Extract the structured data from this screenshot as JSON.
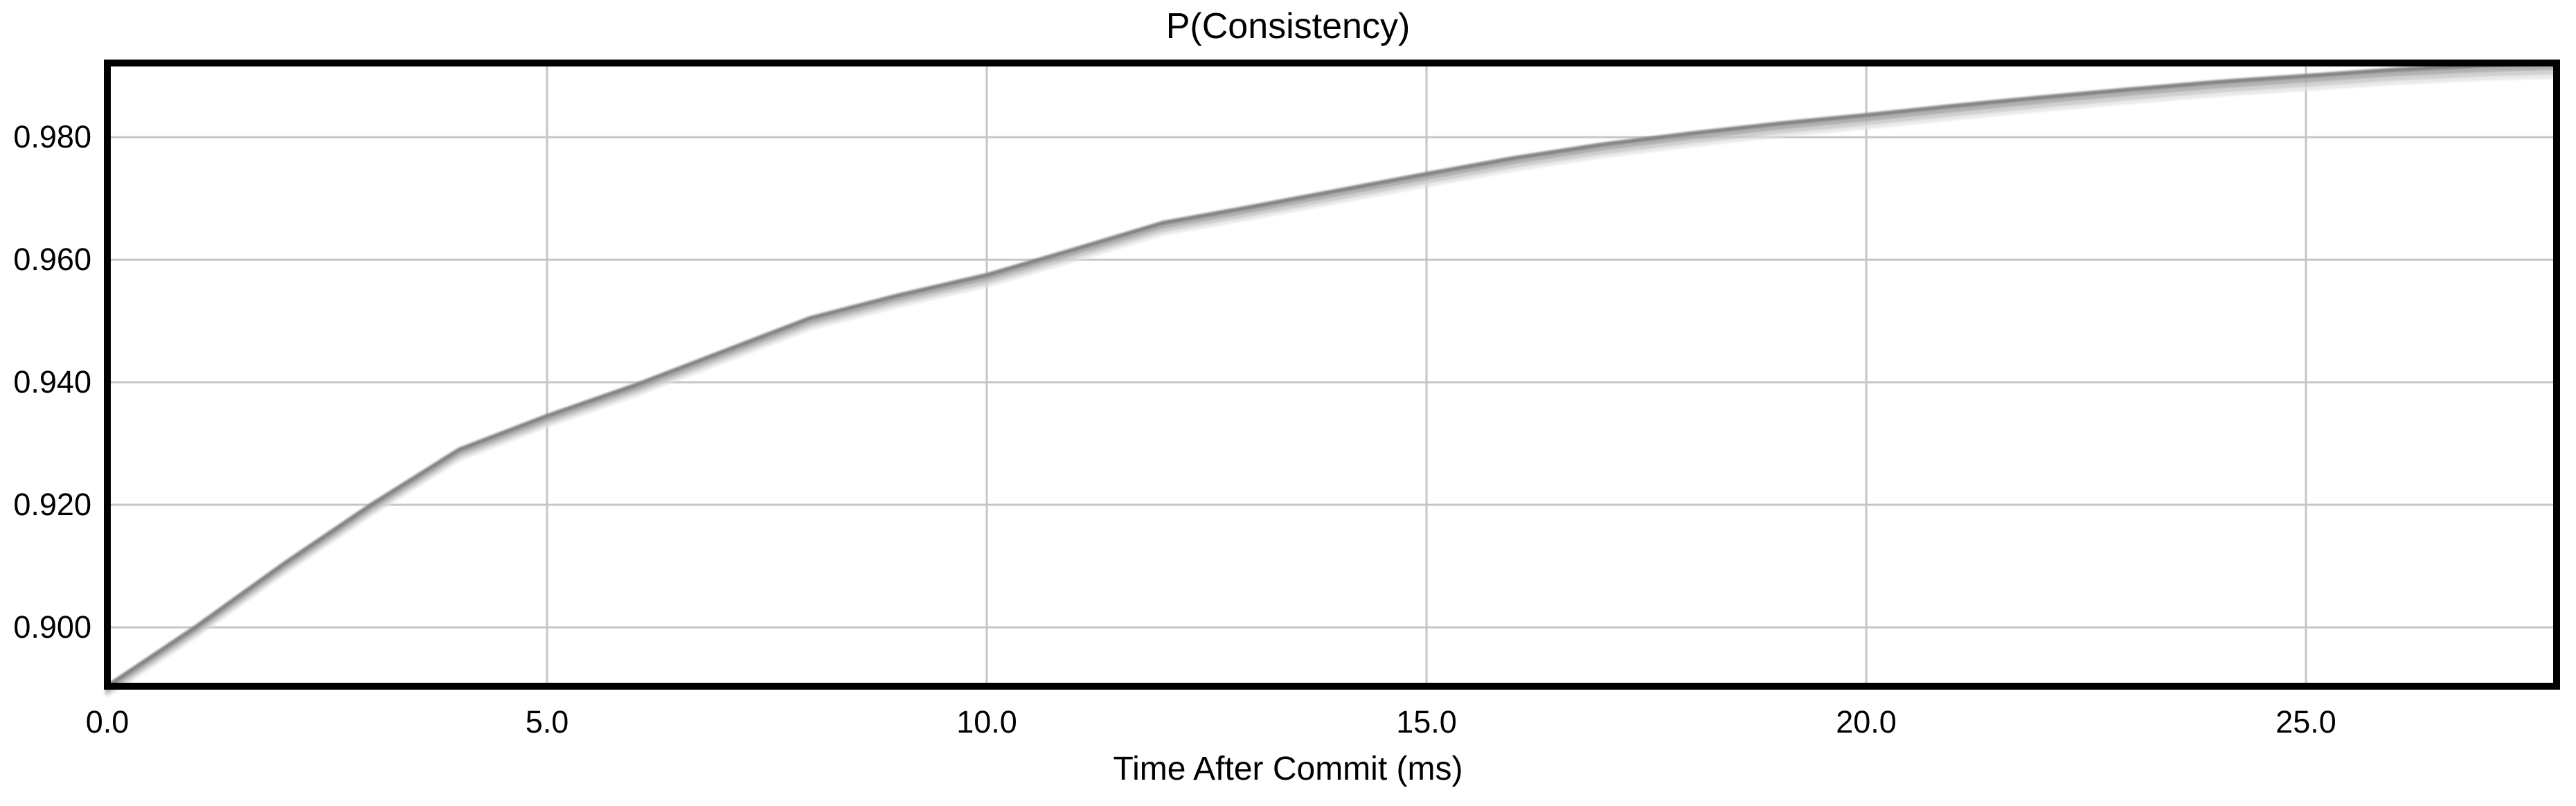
{
  "chart_data": {
    "type": "line",
    "title": "P(Consistency)",
    "xlabel": "Time After Commit (ms)",
    "ylabel": "",
    "xlim": [
      0,
      27.85
    ],
    "ylim": [
      0.8904,
      0.9921
    ],
    "xticks": [
      0,
      5,
      10,
      15,
      20,
      25
    ],
    "xtick_labels": [
      "0.0",
      "5.0",
      "10.0",
      "15.0",
      "20.0",
      "25.0"
    ],
    "yticks": [
      0.9,
      0.92,
      0.94,
      0.96,
      0.98
    ],
    "ytick_labels": [
      "0.900",
      "0.920",
      "0.940",
      "0.960",
      "0.980"
    ],
    "grid": true,
    "legend_position": "none",
    "background": "#ffffff",
    "frame_color": "#000000",
    "grid_color": "#c6c6c6",
    "line_color": "#848484",
    "line_shadow_colors": [
      "#a6a6a6",
      "#c4c4c4",
      "#dedede"
    ],
    "series": [
      {
        "name": "P(Consistency)",
        "x": [
          0,
          1,
          2,
          3,
          4,
          5,
          6,
          7,
          8,
          9,
          10,
          11,
          12,
          13,
          14,
          15,
          16,
          17,
          18,
          19,
          20,
          21,
          22,
          23,
          24,
          25,
          26,
          27,
          27.85
        ],
        "y": [
          0.8904,
          0.9,
          0.9103,
          0.92,
          0.929,
          0.9345,
          0.9395,
          0.945,
          0.9505,
          0.9542,
          0.9575,
          0.9617,
          0.966,
          0.9686,
          0.9713,
          0.974,
          0.9766,
          0.9788,
          0.9806,
          0.9822,
          0.9836,
          0.9851,
          0.9865,
          0.9878,
          0.989,
          0.99,
          0.991,
          0.9917,
          0.9921
        ]
      }
    ]
  }
}
